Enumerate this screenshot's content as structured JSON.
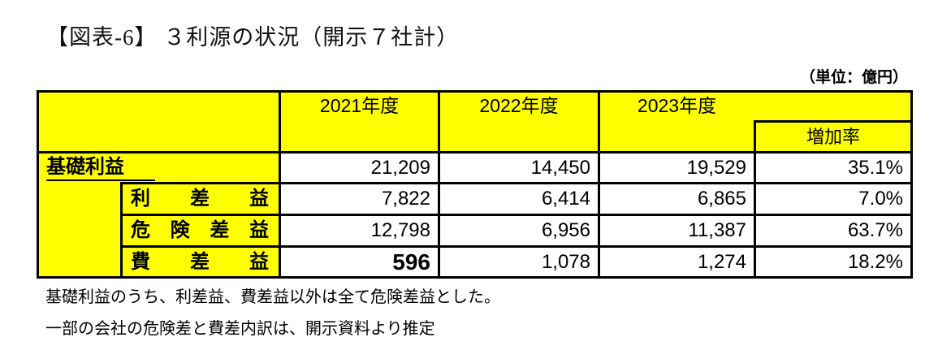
{
  "title": "【図表-6】 ３利源の状況（開示７社計）",
  "unit_label": "（単位：億円）",
  "table": {
    "headers": {
      "fy2021": "2021年度",
      "fy2022": "2022年度",
      "fy2023": "2023年度",
      "growth_rate": "増加率"
    },
    "rows": [
      {
        "label": "基礎利益",
        "fy2021": "21,209",
        "fy2022": "14,450",
        "fy2023": "19,529",
        "growth": "35.1%"
      },
      {
        "label": "利差益",
        "fy2021": "7,822",
        "fy2022": "6,414",
        "fy2023": "6,865",
        "growth": "7.0%"
      },
      {
        "label": "危険差益",
        "fy2021": "12,798",
        "fy2022": "6,956",
        "fy2023": "11,387",
        "growth": "63.7%"
      },
      {
        "label": "費差益",
        "fy2021": "596",
        "fy2022": "1,078",
        "fy2023": "1,274",
        "growth": "18.2%"
      }
    ]
  },
  "notes": [
    "基礎利益のうち、利差益、費差益以外は全て危険差益とした。",
    "一部の会社の危険差と費差内訳は、開示資料より推定"
  ],
  "colors": {
    "highlight": "#ffff00",
    "border": "#000000",
    "text": "#000000"
  }
}
